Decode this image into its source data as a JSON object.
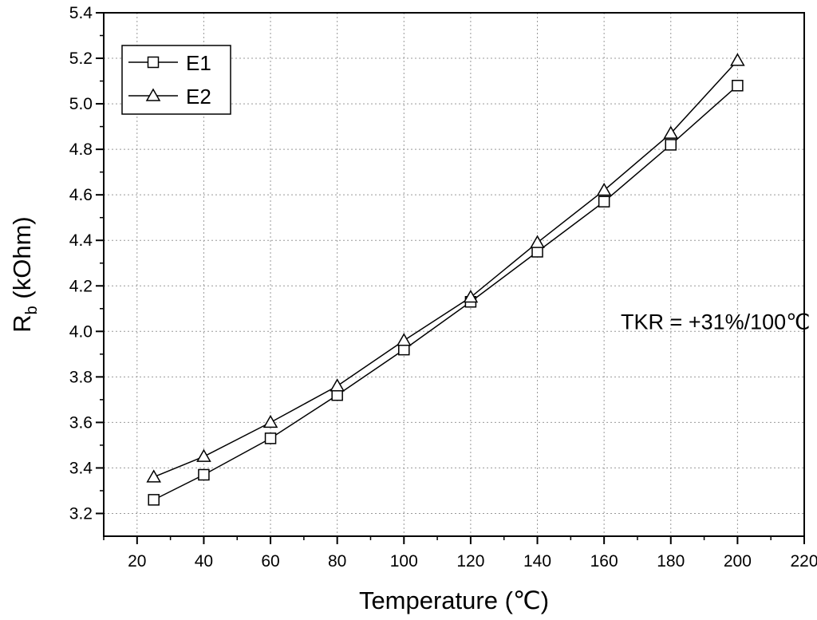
{
  "chart_data": {
    "type": "line",
    "title": "",
    "xlabel": "Temperature (℃)",
    "ylabel_main": "R",
    "ylabel_sub": "b",
    "ylabel_unit": " (kOhm)",
    "xlim": [
      10,
      220
    ],
    "ylim": [
      3.1,
      5.4
    ],
    "xticks": [
      20,
      40,
      60,
      80,
      100,
      120,
      140,
      160,
      180,
      200,
      220
    ],
    "yticks": [
      3.2,
      3.4,
      3.6,
      3.8,
      4.0,
      4.2,
      4.4,
      4.6,
      4.8,
      5.0,
      5.2,
      5.4
    ],
    "grid": true,
    "legend_position": "top-left",
    "series": [
      {
        "name": "E1",
        "marker": "square",
        "x": [
          25,
          40,
          60,
          80,
          100,
          120,
          140,
          160,
          180,
          200
        ],
        "y": [
          3.26,
          3.37,
          3.53,
          3.72,
          3.92,
          4.13,
          4.35,
          4.57,
          4.82,
          5.08
        ]
      },
      {
        "name": "E2",
        "marker": "triangle",
        "x": [
          25,
          40,
          60,
          80,
          100,
          120,
          140,
          160,
          180,
          200
        ],
        "y": [
          3.36,
          3.45,
          3.6,
          3.76,
          3.96,
          4.15,
          4.39,
          4.62,
          4.87,
          5.19
        ]
      }
    ],
    "annotations": [
      {
        "text": "TKR = +31%/100℃",
        "x": 165,
        "y": 4.01
      }
    ]
  }
}
